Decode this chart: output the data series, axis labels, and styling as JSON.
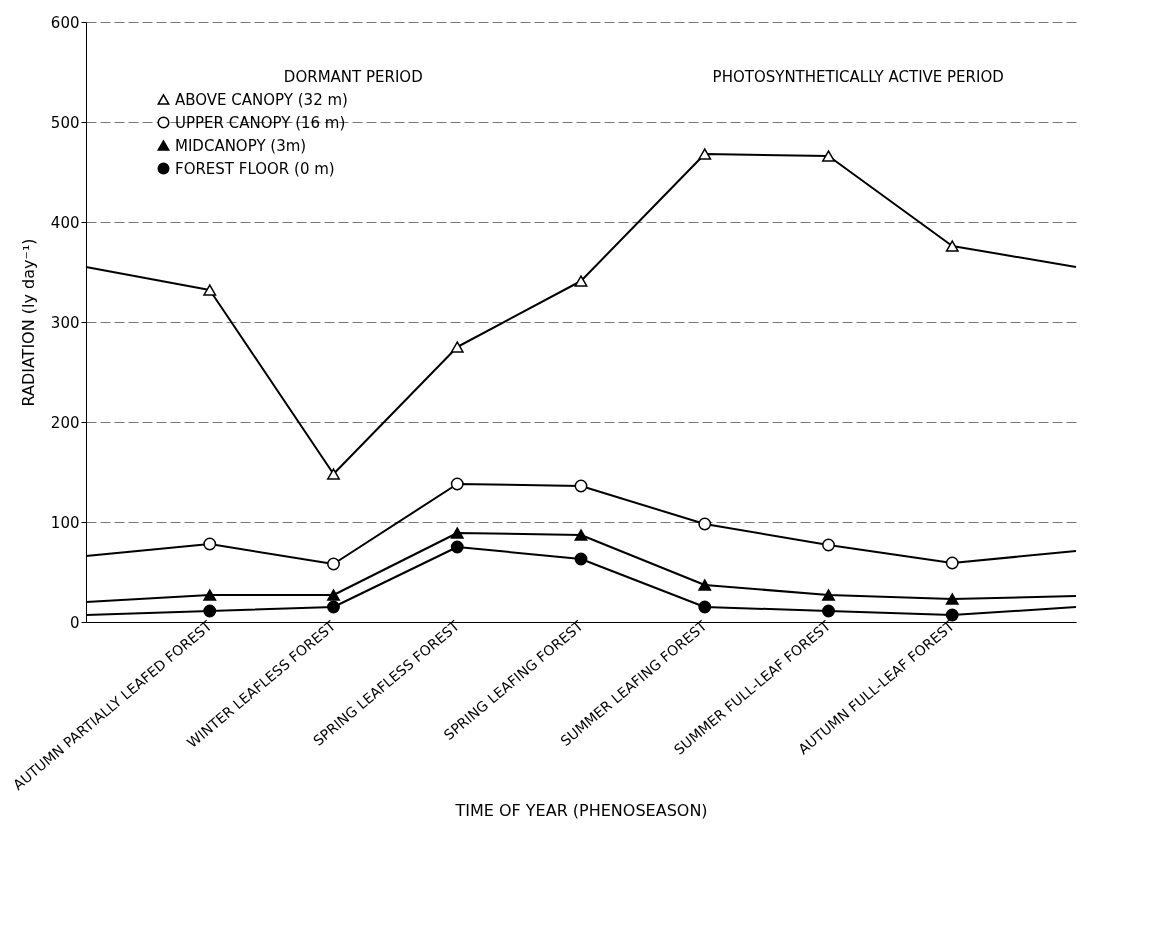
{
  "chart_data": {
    "type": "line",
    "xlabel": "TIME OF YEAR (PHENOSEASON)",
    "ylabel": "RADIATION (ly day⁻¹)",
    "categories": [
      null,
      "AUTUMN PARTIALLY LEAFED FOREST",
      "WINTER LEAFLESS FOREST",
      "SPRING LEAFLESS FOREST",
      "SPRING LEAFING FOREST",
      "SUMMER LEAFING FOREST",
      "SUMMER FULL-LEAF FOREST",
      "AUTUMN FULL-LEAF FOREST",
      null
    ],
    "series": [
      {
        "name": "ABOVE CANOPY (32 m)",
        "color": "#ffffff",
        "marker": "triangle",
        "values": [
          355,
          332,
          148,
          275,
          341,
          468,
          466,
          376,
          355
        ]
      },
      {
        "name": "UPPER CANOPY (16 m)",
        "color": "#ffffff",
        "marker": "circle",
        "values": [
          66,
          78,
          58,
          138,
          136,
          98,
          77,
          59,
          71
        ]
      },
      {
        "name": "MIDCANOPY (3m)",
        "color": "#000000",
        "marker": "triangle",
        "values": [
          20,
          27,
          27,
          89,
          87,
          37,
          27,
          23,
          26
        ]
      },
      {
        "name": "FOREST FLOOR (0 m)",
        "color": "#000000",
        "marker": "circle",
        "values": [
          7,
          11,
          15,
          75,
          63,
          15,
          11,
          7,
          15
        ]
      }
    ],
    "ylim": [
      0,
      600
    ],
    "yticks": [
      0,
      100,
      200,
      300,
      400,
      500,
      600
    ],
    "grid": "y",
    "legend": "top left",
    "line_style": "solid",
    "annotations": [
      "DORMANT PERIOD",
      "PHOTOSYNTHETICALLY ACTIVE PERIOD"
    ]
  }
}
